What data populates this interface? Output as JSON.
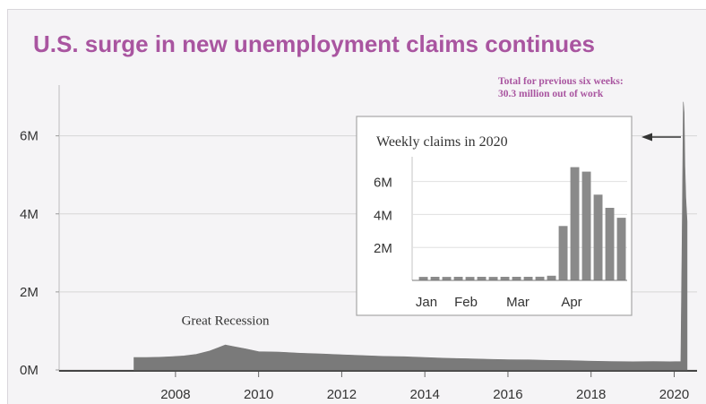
{
  "chart_data": [
    {
      "type": "area",
      "title": "U.S. surge in new unemployment claims continues",
      "callout": [
        "Total for previous six weeks:",
        "30.3 million out of work"
      ],
      "xlabel": "",
      "ylabel": "",
      "xlim": [
        2005.2,
        2020.55
      ],
      "ylim": [
        0,
        7300000
      ],
      "xticks": [
        {
          "value": 2008,
          "label": "2008"
        },
        {
          "value": 2010,
          "label": "2010"
        },
        {
          "value": 2012,
          "label": "2012"
        },
        {
          "value": 2014,
          "label": "2014"
        },
        {
          "value": 2016,
          "label": "2016"
        },
        {
          "value": 2018,
          "label": "2018"
        },
        {
          "value": 2020,
          "label": "2020"
        }
      ],
      "yticks": [
        {
          "value": 0,
          "label": "0M"
        },
        {
          "value": 2000000,
          "label": "2M"
        },
        {
          "value": 4000000,
          "label": "4M"
        },
        {
          "value": 6000000,
          "label": "6M"
        }
      ],
      "annotation": {
        "text": "Great Recession",
        "x": 2009.2,
        "y": 650000
      },
      "series": [
        {
          "color": "#7a7a7a",
          "points": [
            [
              2007.0,
              0
            ],
            [
              2007.0,
              320000
            ],
            [
              2007.3,
              320000
            ],
            [
              2007.6,
              325000
            ],
            [
              2007.9,
              340000
            ],
            [
              2008.2,
              360000
            ],
            [
              2008.5,
              400000
            ],
            [
              2008.8,
              480000
            ],
            [
              2009.0,
              560000
            ],
            [
              2009.2,
              640000
            ],
            [
              2009.4,
              600000
            ],
            [
              2009.7,
              540000
            ],
            [
              2010.0,
              470000
            ],
            [
              2010.5,
              460000
            ],
            [
              2011.0,
              430000
            ],
            [
              2011.5,
              410000
            ],
            [
              2012.0,
              390000
            ],
            [
              2012.5,
              370000
            ],
            [
              2013.0,
              350000
            ],
            [
              2013.5,
              340000
            ],
            [
              2014.0,
              320000
            ],
            [
              2014.5,
              300000
            ],
            [
              2015.0,
              290000
            ],
            [
              2015.5,
              275000
            ],
            [
              2016.0,
              265000
            ],
            [
              2016.5,
              260000
            ],
            [
              2017.0,
              245000
            ],
            [
              2017.5,
              240000
            ],
            [
              2018.0,
              225000
            ],
            [
              2018.5,
              215000
            ],
            [
              2019.0,
              212000
            ],
            [
              2019.5,
              215000
            ],
            [
              2019.9,
              212000
            ],
            [
              2020.16,
              215000
            ],
            [
              2020.19,
              3300000
            ],
            [
              2020.22,
              6870000
            ],
            [
              2020.24,
              6600000
            ],
            [
              2020.26,
              5200000
            ],
            [
              2020.28,
              4400000
            ],
            [
              2020.31,
              3800000
            ],
            [
              2020.31,
              0
            ]
          ]
        }
      ]
    },
    {
      "type": "bar",
      "title": "Weekly claims in 2020",
      "xlabel": "",
      "ylabel": "",
      "ylim": [
        0,
        7500000
      ],
      "month_labels": [
        "Jan",
        "Feb",
        "Mar",
        "Apr"
      ],
      "yticks": [
        {
          "value": 2000000,
          "label": "2M"
        },
        {
          "value": 4000000,
          "label": "4M"
        },
        {
          "value": 6000000,
          "label": "6M"
        }
      ],
      "values": [
        210000,
        215000,
        212000,
        220000,
        210000,
        215000,
        212000,
        220000,
        218000,
        215000,
        225000,
        282000,
        3300000,
        6870000,
        6600000,
        5200000,
        4400000,
        3800000
      ],
      "color": "#8a8a8a"
    }
  ]
}
